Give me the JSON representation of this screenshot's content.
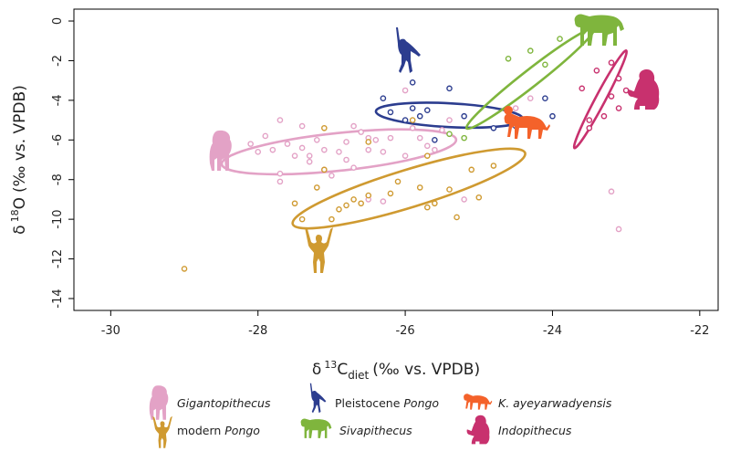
{
  "chart_data": {
    "type": "scatter",
    "title": "",
    "xlabel": "δ 13C diet (‰ vs. VPDB)",
    "ylabel": "δ 18O (‰ vs. VPDB)",
    "x_axis": {
      "symbol": "δ",
      "sup": "13",
      "letter": "C",
      "sub": "diet",
      "unit": "(‰ vs. VPDB)"
    },
    "y_axis": {
      "symbol": "δ",
      "sup": "18",
      "letter": "O",
      "unit": "(‰ vs. VPDB)"
    },
    "xlim": [
      -30.5,
      -21.75
    ],
    "ylim": [
      -14.6,
      0.6
    ],
    "x_ticks": [
      -30,
      -28,
      -26,
      -24,
      -22
    ],
    "y_ticks": [
      0,
      -2,
      -4,
      -6,
      -8,
      -10,
      -12,
      -14
    ],
    "legend_placement": "bottom",
    "series": [
      {
        "name": "Gigantopithecus",
        "name_plain": "",
        "name_italic": "Gigantopithecus",
        "color": "#e3a2c6",
        "icon": "standing-ape-icon",
        "points": [
          [
            -28.1,
            -6.2
          ],
          [
            -28.0,
            -6.6
          ],
          [
            -27.9,
            -5.8
          ],
          [
            -27.8,
            -6.5
          ],
          [
            -27.7,
            -5.0
          ],
          [
            -27.7,
            -7.7
          ],
          [
            -27.7,
            -8.1
          ],
          [
            -27.6,
            -6.2
          ],
          [
            -27.5,
            -6.8
          ],
          [
            -27.4,
            -5.3
          ],
          [
            -27.4,
            -6.4
          ],
          [
            -27.3,
            -6.8
          ],
          [
            -27.3,
            -7.1
          ],
          [
            -27.2,
            -6.0
          ],
          [
            -27.1,
            -6.5
          ],
          [
            -27.1,
            -7.5
          ],
          [
            -27.0,
            -7.8
          ],
          [
            -26.9,
            -6.6
          ],
          [
            -26.8,
            -6.1
          ],
          [
            -26.8,
            -7.0
          ],
          [
            -26.7,
            -5.3
          ],
          [
            -26.7,
            -7.4
          ],
          [
            -26.6,
            -5.6
          ],
          [
            -26.5,
            -5.9
          ],
          [
            -26.5,
            -6.5
          ],
          [
            -26.4,
            -6.0
          ],
          [
            -26.3,
            -6.6
          ],
          [
            -26.2,
            -5.9
          ],
          [
            -26.0,
            -6.8
          ],
          [
            -25.9,
            -5.4
          ],
          [
            -25.8,
            -5.9
          ],
          [
            -25.7,
            -6.3
          ],
          [
            -25.6,
            -6.5
          ],
          [
            -25.5,
            -5.5
          ],
          [
            -25.4,
            -5.0
          ],
          [
            -26.5,
            -9.0
          ],
          [
            -26.3,
            -9.1
          ],
          [
            -26.0,
            -3.5
          ],
          [
            -25.2,
            -9.0
          ],
          [
            -24.5,
            -4.4
          ],
          [
            -24.3,
            -3.9
          ],
          [
            -23.2,
            -8.6
          ],
          [
            -23.1,
            -10.5
          ]
        ],
        "ellipse": {
          "cx": -26.9,
          "cy": -6.6,
          "rx": 1.6,
          "ry": 0.95,
          "angle_deg": -6
        }
      },
      {
        "name": "modern Pongo",
        "name_plain": "modern ",
        "name_italic": "Pongo",
        "color": "#cf9a31",
        "icon": "hanging-ape-icon",
        "points": [
          [
            -29.0,
            -12.5
          ],
          [
            -27.5,
            -9.2
          ],
          [
            -27.4,
            -10.0
          ],
          [
            -27.2,
            -8.4
          ],
          [
            -27.1,
            -7.5
          ],
          [
            -27.1,
            -5.4
          ],
          [
            -27.0,
            -10.0
          ],
          [
            -26.9,
            -9.5
          ],
          [
            -26.8,
            -9.3
          ],
          [
            -26.7,
            -9.0
          ],
          [
            -26.6,
            -9.2
          ],
          [
            -26.5,
            -8.8
          ],
          [
            -26.5,
            -6.1
          ],
          [
            -26.2,
            -8.7
          ],
          [
            -26.1,
            -8.1
          ],
          [
            -25.9,
            -5.0
          ],
          [
            -25.8,
            -8.4
          ],
          [
            -25.7,
            -9.4
          ],
          [
            -25.6,
            -9.2
          ],
          [
            -25.4,
            -8.5
          ],
          [
            -25.3,
            -9.9
          ],
          [
            -25.1,
            -7.5
          ],
          [
            -25.0,
            -8.9
          ],
          [
            -24.8,
            -7.3
          ],
          [
            -25.7,
            -6.8
          ]
        ],
        "ellipse": {
          "cx": -25.95,
          "cy": -8.45,
          "rx": 1.65,
          "ry": 0.95,
          "angle_deg": -17
        }
      },
      {
        "name": "Pleistocene Pongo",
        "name_plain": "Pleistocene ",
        "name_italic": "Pongo",
        "color": "#2c3d8f",
        "icon": "swinging-ape-icon",
        "points": [
          [
            -26.3,
            -3.9
          ],
          [
            -26.2,
            -4.6
          ],
          [
            -26.0,
            -5.0
          ],
          [
            -25.9,
            -4.4
          ],
          [
            -25.9,
            -3.1
          ],
          [
            -25.8,
            -4.8
          ],
          [
            -25.7,
            -4.5
          ],
          [
            -25.6,
            -6.0
          ],
          [
            -25.4,
            -3.4
          ],
          [
            -25.2,
            -4.8
          ],
          [
            -24.8,
            -5.4
          ],
          [
            -24.5,
            -5.3
          ],
          [
            -24.1,
            -3.9
          ],
          [
            -24.0,
            -4.8
          ]
        ],
        "ellipse": {
          "cx": -25.4,
          "cy": -4.75,
          "rx": 1.0,
          "ry": 0.6,
          "angle_deg": 3
        }
      },
      {
        "name": "Sivapithecus",
        "name_plain": "",
        "name_italic": "Sivapithecus",
        "color": "#7fb53d",
        "icon": "quadruped-ape-icon",
        "points": [
          [
            -24.6,
            -1.9
          ],
          [
            -24.3,
            -1.5
          ],
          [
            -24.1,
            -2.2
          ],
          [
            -23.9,
            -0.9
          ],
          [
            -25.4,
            -5.7
          ],
          [
            -25.2,
            -5.9
          ]
        ],
        "ellipse": {
          "cx": -24.3,
          "cy": -2.9,
          "rx": 1.1,
          "ry": 0.42,
          "angle_deg": -38
        }
      },
      {
        "name": "K. ayeyarwadyensis",
        "name_plain": "",
        "name_italic": "K. ayeyarwadyensis",
        "color": "#f4622a",
        "icon": "small-quadruped-ape-icon",
        "points": [
          [
            -24.6,
            -4.5
          ]
        ],
        "filled": true,
        "ellipse": null
      },
      {
        "name": "Indopithecus",
        "name_plain": "",
        "name_italic": "Indopithecus",
        "color": "#c8316e",
        "icon": "sitting-ape-icon",
        "points": [
          [
            -23.6,
            -3.4
          ],
          [
            -23.5,
            -5.0
          ],
          [
            -23.5,
            -5.4
          ],
          [
            -23.4,
            -2.5
          ],
          [
            -23.3,
            -4.8
          ],
          [
            -23.2,
            -2.1
          ],
          [
            -23.2,
            -3.8
          ],
          [
            -23.1,
            -4.4
          ],
          [
            -23.1,
            -2.9
          ],
          [
            -23.0,
            -3.5
          ]
        ],
        "ellipse": {
          "cx": -23.35,
          "cy": -3.95,
          "rx": 0.75,
          "ry": 0.25,
          "angle_deg": -62
        }
      }
    ]
  }
}
